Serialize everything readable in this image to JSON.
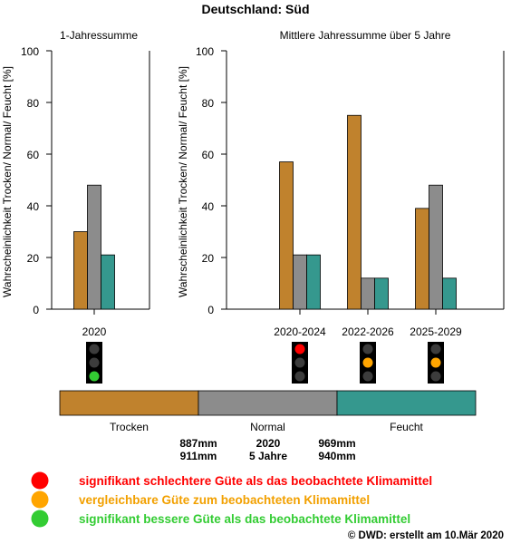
{
  "title": "Deutschland: Süd",
  "colors": {
    "trocken": "#c0822d",
    "normal": "#8c8c8c",
    "feucht": "#35988e",
    "red": "#ff0000",
    "orange": "#ffa500",
    "green": "#33cc33",
    "text_red": "#ff0000",
    "text_orange": "#f2a000",
    "text_green": "#33cc33"
  },
  "chart_data": [
    {
      "type": "bar",
      "title": "1-Jahressumme",
      "ylabel": "Wahrscheinlichkeit Trocken/ Normal/ Feucht [%]",
      "ylim": [
        0,
        100
      ],
      "yticks": [
        "0",
        "20",
        "40",
        "60",
        "80",
        "100"
      ],
      "categories": [
        "2020"
      ],
      "series": [
        {
          "name": "Trocken",
          "values": [
            30
          ]
        },
        {
          "name": "Normal",
          "values": [
            48
          ]
        },
        {
          "name": "Feucht",
          "values": [
            21
          ]
        }
      ],
      "traffic_lights": [
        "green"
      ]
    },
    {
      "type": "bar",
      "title": "Mittlere Jahressumme über 5 Jahre",
      "ylabel": "Wahrscheinlichkeit Trocken/ Normal/ Feucht [%]",
      "ylim": [
        0,
        100
      ],
      "yticks": [
        "0",
        "20",
        "40",
        "60",
        "80",
        "100"
      ],
      "categories": [
        "2020-2024",
        "2022-2026",
        "2025-2029"
      ],
      "series": [
        {
          "name": "Trocken",
          "values": [
            57,
            75,
            39
          ]
        },
        {
          "name": "Normal",
          "values": [
            21,
            12,
            48
          ]
        },
        {
          "name": "Feucht",
          "values": [
            21,
            12,
            12
          ]
        }
      ],
      "traffic_lights": [
        "red",
        "orange",
        "orange"
      ]
    }
  ],
  "legend": {
    "labels": [
      "Trocken",
      "Normal",
      "Feucht"
    ],
    "thresholds_col1": [
      "887mm",
      "911mm"
    ],
    "thresholds_col2": [
      "2020",
      "5 Jahre"
    ],
    "thresholds_col3": [
      "969mm",
      "940mm"
    ]
  },
  "key": [
    {
      "color": "red",
      "text": "signifikant schlechtere Güte als das beobachtete Klimamittel"
    },
    {
      "color": "orange",
      "text": "vergleichbare Güte zum beobachteten Klimamittel"
    },
    {
      "color": "green",
      "text": "signifikant bessere Güte als das beobachtete Klimamittel"
    }
  ],
  "footer": "©  DWD: erstellt am 10.Mär 2020"
}
